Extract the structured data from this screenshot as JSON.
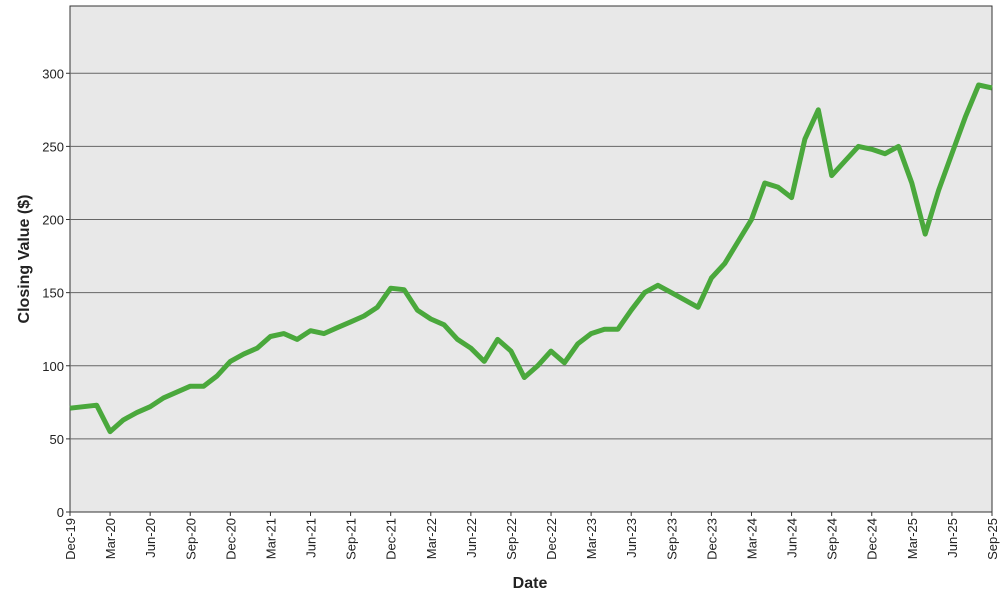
{
  "chart_data": {
    "type": "line",
    "x_label": "Date",
    "y_label": "Closing Value ($)",
    "x": [
      "Dec-19",
      "Jan-20",
      "Feb-20",
      "Mar-20",
      "Apr-20",
      "May-20",
      "Jun-20",
      "Jul-20",
      "Aug-20",
      "Sep-20",
      "Oct-20",
      "Nov-20",
      "Dec-20",
      "Jan-21",
      "Feb-21",
      "Mar-21",
      "Apr-21",
      "May-21",
      "Jun-21",
      "Jul-21",
      "Aug-21",
      "Sep-21",
      "Oct-21",
      "Nov-21",
      "Dec-21",
      "Jan-22",
      "Feb-22",
      "Mar-22",
      "Apr-22",
      "May-22",
      "Jun-22",
      "Jul-22",
      "Aug-22",
      "Sep-22",
      "Oct-22",
      "Nov-22",
      "Dec-22",
      "Jan-23",
      "Feb-23",
      "Mar-23",
      "Apr-23",
      "May-23",
      "Jun-23",
      "Jul-23",
      "Aug-23",
      "Sep-23",
      "Oct-23",
      "Nov-23",
      "Dec-23",
      "Jan-24",
      "Feb-24",
      "Mar-24",
      "Apr-24",
      "May-24",
      "Jun-24",
      "Jul-24",
      "Aug-24",
      "Sep-24",
      "Oct-24",
      "Nov-24",
      "Dec-24",
      "Jan-25",
      "Feb-25",
      "Mar-25",
      "Apr-25",
      "May-25",
      "Jun-25",
      "Jul-25",
      "Aug-25",
      "Sep-25"
    ],
    "series": [
      {
        "name": "Closing Value",
        "color": "#4aa83c",
        "values": [
          71,
          72,
          73,
          55,
          63,
          68,
          72,
          78,
          82,
          86,
          86,
          93,
          103,
          108,
          112,
          120,
          122,
          118,
          124,
          122,
          126,
          130,
          134,
          140,
          153,
          152,
          138,
          132,
          128,
          118,
          112,
          103,
          118,
          110,
          92,
          100,
          110,
          102,
          115,
          122,
          125,
          125,
          138,
          150,
          155,
          150,
          145,
          140,
          160,
          170,
          185,
          200,
          225,
          222,
          215,
          255,
          275,
          230,
          240,
          250,
          248,
          245,
          250,
          225,
          190,
          220,
          245,
          270,
          292,
          290
        ]
      }
    ],
    "xticks": [
      "Dec-19",
      "Mar-20",
      "Jun-20",
      "Sep-20",
      "Dec-20",
      "Mar-21",
      "Jun-21",
      "Sep-21",
      "Dec-21",
      "Mar-22",
      "Jun-22",
      "Sep-22",
      "Dec-22",
      "Mar-23",
      "Jun-23",
      "Sep-23",
      "Dec-23",
      "Mar-24",
      "Jun-24",
      "Sep-24",
      "Dec-24",
      "Mar-25",
      "Jun-25",
      "Sep-25"
    ],
    "ylim": [
      0,
      346
    ],
    "yticks": [
      0,
      50,
      100,
      150,
      200,
      250,
      300
    ],
    "grid": true
  }
}
